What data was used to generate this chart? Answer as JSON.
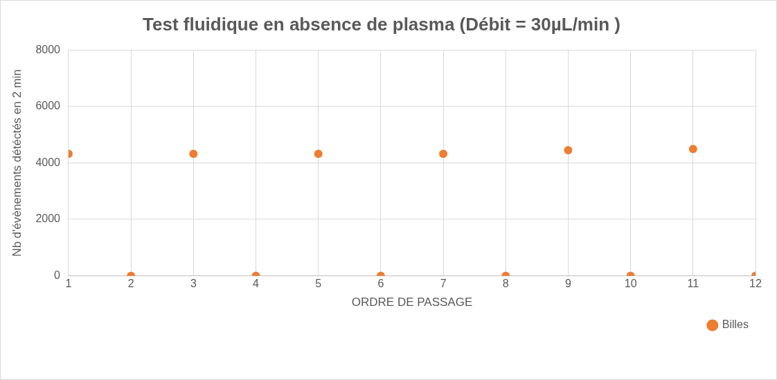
{
  "chart_data": {
    "type": "scatter",
    "title": "Test fluidique en absence de plasma (Débit = 30µL/min )",
    "xlabel": "ORDRE DE PASSAGE",
    "ylabel": "Nb d'évènements détéctés en 2 min",
    "x": [
      1,
      2,
      3,
      4,
      5,
      6,
      7,
      8,
      9,
      10,
      11,
      12
    ],
    "series": [
      {
        "name": "Billes",
        "color": "#ed7d31",
        "values": [
          4320,
          0,
          4320,
          0,
          4320,
          0,
          4320,
          0,
          4450,
          0,
          4490,
          0
        ]
      }
    ],
    "xlim": [
      1,
      12
    ],
    "xticks": [
      1,
      2,
      3,
      4,
      5,
      6,
      7,
      8,
      9,
      10,
      11,
      12
    ],
    "ylim": [
      0,
      8000
    ],
    "yticks": [
      0,
      2000,
      4000,
      6000,
      8000
    ],
    "grid": true,
    "legend": "bottom right",
    "marker": "circle"
  }
}
